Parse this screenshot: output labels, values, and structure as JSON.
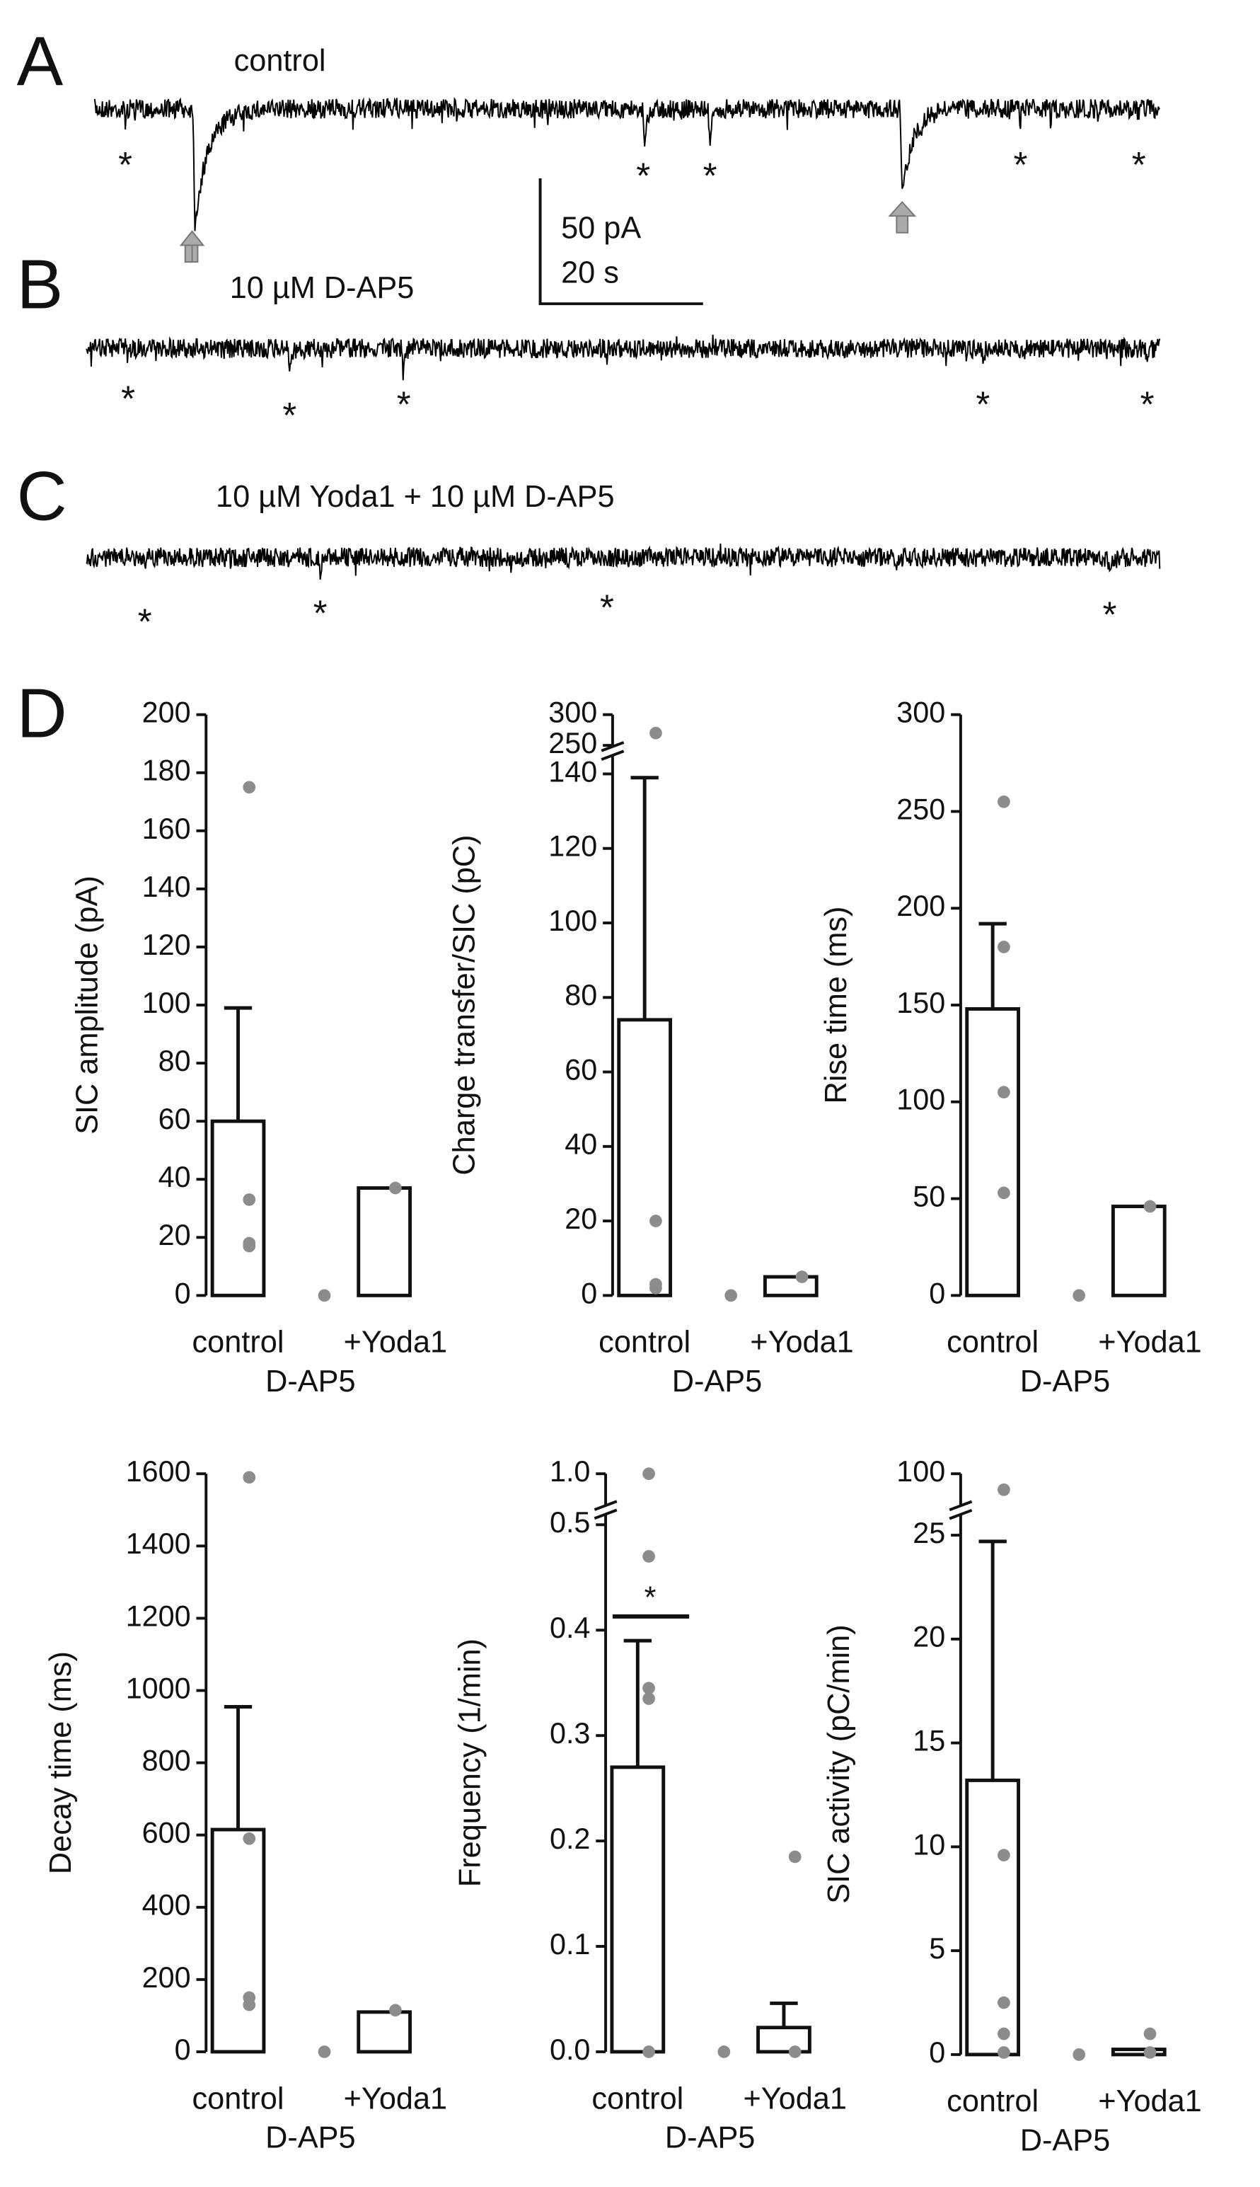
{
  "panel_labels": [
    "A",
    "B",
    "C",
    "D"
  ],
  "traces": [
    {
      "label": "control",
      "markers": [
        "*",
        "*",
        "*",
        "*",
        "*"
      ]
    },
    {
      "label": "10 µM D-AP5",
      "markers": [
        "*",
        "*",
        "*",
        "*",
        "*"
      ]
    },
    {
      "label": "10 µM Yoda1 + 10 µM D-AP5",
      "markers": [
        "*",
        "*",
        "*",
        "*"
      ]
    }
  ],
  "scale_bar": {
    "current": "50 pA",
    "time": "20 s"
  },
  "chart_data": [
    {
      "type": "bar",
      "ylabel": "SIC amplitude (pA)",
      "categories": [
        "control",
        "D-AP5",
        "+Yoda1"
      ],
      "values": [
        60,
        0,
        37
      ],
      "errors": [
        39,
        null,
        null
      ],
      "points": [
        [
          175,
          33,
          18,
          17
        ],
        [
          0
        ],
        [
          37
        ]
      ],
      "ylim": [
        0,
        200
      ],
      "yticks": [
        0,
        20,
        40,
        60,
        80,
        100,
        120,
        140,
        160,
        180,
        200
      ],
      "color": "#ffffff",
      "point_color": "#8c8c8c"
    },
    {
      "type": "bar",
      "ylabel": "Charge transfer/SIC (pC)",
      "categories": [
        "control",
        "D-AP5",
        "+Yoda1"
      ],
      "values": [
        74,
        0,
        5
      ],
      "errors": [
        65,
        null,
        null
      ],
      "points": [
        [
          270,
          20,
          3,
          2
        ],
        [
          0
        ],
        [
          5
        ]
      ],
      "ylim": [
        0,
        300
      ],
      "ybreak": [
        145,
        248
      ],
      "yticks": [
        0,
        20,
        40,
        60,
        80,
        100,
        120,
        140,
        250,
        300
      ],
      "color": "#ffffff",
      "point_color": "#8c8c8c"
    },
    {
      "type": "bar",
      "ylabel": "Rise time (ms)",
      "categories": [
        "control",
        "D-AP5",
        "+Yoda1"
      ],
      "values": [
        148,
        0,
        46
      ],
      "errors": [
        44,
        null,
        null
      ],
      "points": [
        [
          255,
          180,
          105,
          53
        ],
        [
          0
        ],
        [
          46
        ]
      ],
      "ylim": [
        0,
        300
      ],
      "yticks": [
        0,
        50,
        100,
        150,
        200,
        250,
        300
      ],
      "color": "#ffffff",
      "point_color": "#8c8c8c"
    },
    {
      "type": "bar",
      "ylabel": "Decay time (ms)",
      "categories": [
        "control",
        "D-AP5",
        "+Yoda1"
      ],
      "values": [
        615,
        0,
        110
      ],
      "errors": [
        340,
        null,
        null
      ],
      "points": [
        [
          1590,
          590,
          150,
          130
        ],
        [
          0
        ],
        [
          115
        ]
      ],
      "ylim": [
        0,
        1600
      ],
      "yticks": [
        0,
        200,
        400,
        600,
        800,
        1000,
        1200,
        1400,
        1600
      ],
      "color": "#ffffff",
      "point_color": "#8c8c8c"
    },
    {
      "type": "bar",
      "ylabel": "Frequency (1/min)",
      "categories": [
        "control",
        "D-AP5",
        "+Yoda1"
      ],
      "values": [
        0.27,
        0,
        0.023
      ],
      "errors": [
        0.12,
        null,
        0.023
      ],
      "points": [
        [
          1,
          0.47,
          0.345,
          0.335,
          0
        ],
        [
          0
        ],
        [
          0.185,
          0
        ]
      ],
      "ylim": [
        0,
        1
      ],
      "ybreak": [
        0.51,
        0.9
      ],
      "yticks": [
        {
          "value": 0,
          "label": "0.0"
        },
        0.1,
        0.2,
        0.3,
        0.4,
        0.5,
        {
          "value": 1,
          "label": "1.0"
        }
      ],
      "annotation": {
        "text": "*",
        "y": 0.413
      },
      "color": "#ffffff",
      "point_color": "#8c8c8c"
    },
    {
      "type": "bar",
      "ylabel": "SIC activity (pC/min)",
      "categories": [
        "control",
        "D-AP5",
        "+Yoda1"
      ],
      "values": [
        13.2,
        0,
        0.25
      ],
      "errors": [
        11.5,
        null,
        null
      ],
      "points": [
        [
          90,
          9.6,
          2.5,
          1.0,
          0.1
        ],
        [
          0
        ],
        [
          1.0,
          0.1
        ]
      ],
      "ylim": [
        0,
        100
      ],
      "ybreak": [
        26,
        80
      ],
      "yticks": [
        0,
        5,
        10,
        15,
        20,
        25,
        100
      ],
      "color": "#ffffff",
      "point_color": "#8c8c8c"
    }
  ]
}
